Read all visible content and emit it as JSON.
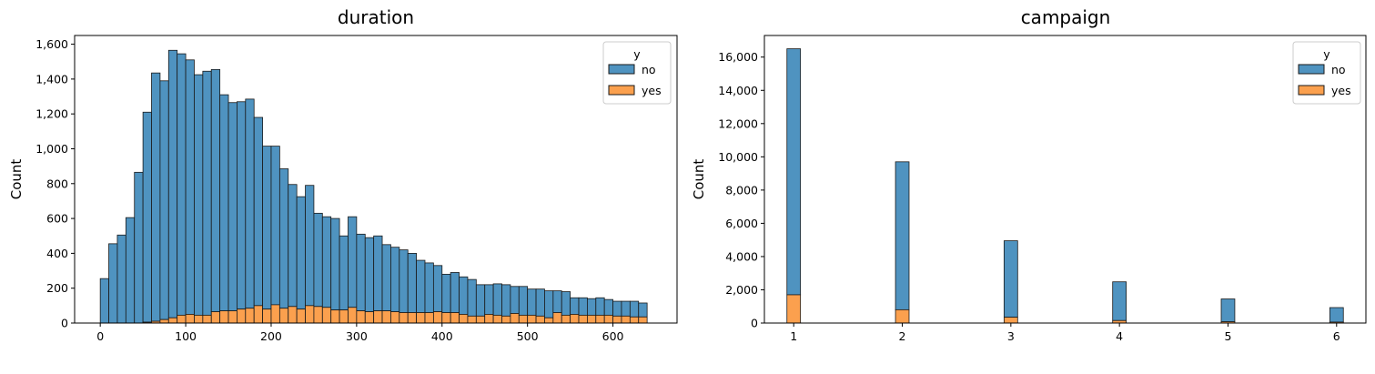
{
  "colors": {
    "no": "#4f93c0",
    "yes": "#fba04e",
    "edge": "#1a1a1a"
  },
  "chart_data": [
    {
      "type": "bar",
      "stacked": true,
      "title": "duration",
      "xlabel": "",
      "ylabel": "Count",
      "bin_width": 10,
      "xlim": [
        -30,
        675
      ],
      "ylim": [
        0,
        1650
      ],
      "xticks": [
        0,
        100,
        200,
        300,
        400,
        500,
        600
      ],
      "xtick_labels": [
        "0",
        "100",
        "200",
        "300",
        "400",
        "500",
        "600"
      ],
      "yticks": [
        0,
        200,
        400,
        600,
        800,
        1000,
        1200,
        1400,
        1600
      ],
      "ytick_labels": [
        "0",
        "200",
        "400",
        "600",
        "800",
        "1,000",
        "1,200",
        "1,400",
        "1,600"
      ],
      "legend": {
        "title": "y",
        "placement": "top-right",
        "entries": [
          "no",
          "yes"
        ]
      },
      "x": [
        0,
        10,
        20,
        30,
        40,
        50,
        60,
        70,
        80,
        90,
        100,
        110,
        120,
        130,
        140,
        150,
        160,
        170,
        180,
        190,
        200,
        210,
        220,
        230,
        240,
        250,
        260,
        270,
        280,
        290,
        300,
        310,
        320,
        330,
        340,
        350,
        360,
        370,
        380,
        390,
        400,
        410,
        420,
        430,
        440,
        450,
        460,
        470,
        480,
        490,
        500,
        510,
        520,
        530,
        540,
        550,
        560,
        570,
        580,
        590,
        600,
        610,
        620,
        630
      ],
      "series": [
        {
          "name": "yes",
          "values": [
            0,
            0,
            0,
            0,
            0,
            5,
            10,
            20,
            30,
            45,
            50,
            45,
            45,
            65,
            70,
            70,
            80,
            85,
            100,
            80,
            105,
            85,
            95,
            80,
            100,
            95,
            90,
            75,
            75,
            90,
            70,
            65,
            70,
            70,
            65,
            60,
            60,
            60,
            60,
            65,
            60,
            60,
            50,
            40,
            40,
            50,
            45,
            40,
            55,
            45,
            45,
            40,
            30,
            60,
            45,
            50,
            45,
            45,
            45,
            45,
            40,
            40,
            35,
            35
          ]
        },
        {
          "name": "no",
          "values": [
            255,
            455,
            505,
            605,
            865,
            1205,
            1425,
            1370,
            1535,
            1500,
            1460,
            1380,
            1400,
            1390,
            1240,
            1195,
            1190,
            1200,
            1080,
            935,
            910,
            800,
            700,
            645,
            690,
            535,
            520,
            525,
            425,
            520,
            440,
            425,
            430,
            380,
            370,
            360,
            340,
            300,
            285,
            265,
            220,
            230,
            215,
            210,
            180,
            170,
            180,
            180,
            155,
            165,
            150,
            155,
            155,
            125,
            135,
            95,
            100,
            95,
            100,
            90,
            85,
            85,
            90,
            80
          ]
        }
      ]
    },
    {
      "type": "bar",
      "stacked": true,
      "title": "campaign",
      "xlabel": "",
      "ylabel": "Count",
      "bar_width": 0.125,
      "xlim": [
        0.73,
        6.27
      ],
      "ylim": [
        0,
        17300
      ],
      "xticks": [
        1,
        2,
        3,
        4,
        5,
        6
      ],
      "xtick_labels": [
        "1",
        "2",
        "3",
        "4",
        "5",
        "6"
      ],
      "yticks": [
        0,
        2000,
        4000,
        6000,
        8000,
        10000,
        12000,
        14000,
        16000
      ],
      "ytick_labels": [
        "0",
        "2,000",
        "4,000",
        "6,000",
        "8,000",
        "10,000",
        "12,000",
        "14,000",
        "16,000"
      ],
      "legend": {
        "title": "y",
        "placement": "top-right",
        "entries": [
          "no",
          "yes"
        ]
      },
      "x": [
        1,
        2,
        3,
        4,
        5,
        6
      ],
      "series": [
        {
          "name": "yes",
          "values": [
            1700,
            800,
            350,
            150,
            80,
            60
          ]
        },
        {
          "name": "no",
          "values": [
            14800,
            8900,
            4600,
            2330,
            1370,
            870
          ]
        }
      ]
    }
  ]
}
